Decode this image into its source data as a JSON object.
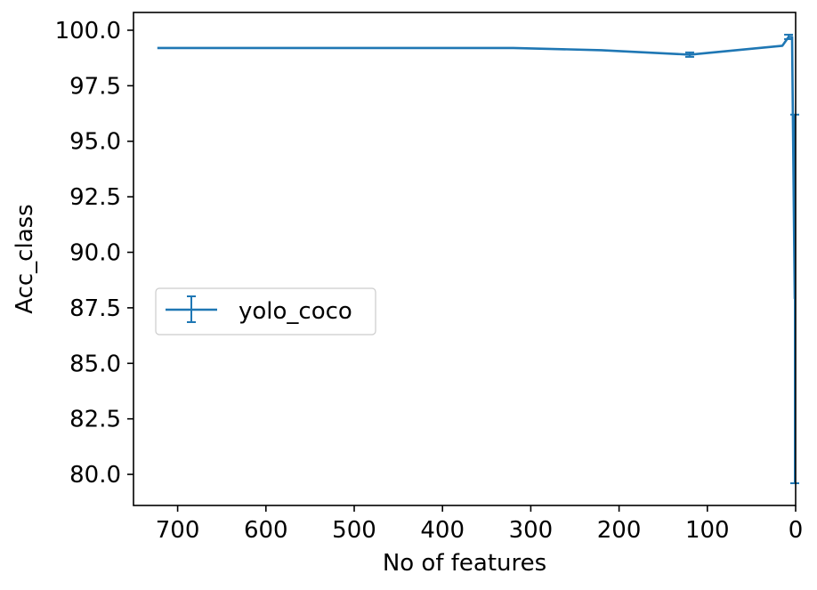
{
  "chart_data": {
    "type": "line",
    "xlabel": "No of features",
    "ylabel": "Acc_class",
    "xlim": [
      750,
      0
    ],
    "ylim": [
      78.6,
      100.8
    ],
    "x_ticks": [
      700,
      600,
      500,
      400,
      300,
      200,
      100,
      0
    ],
    "x_tick_labels": [
      "700",
      "600",
      "500",
      "400",
      "300",
      "200",
      "100",
      "0"
    ],
    "y_ticks": [
      80.0,
      82.5,
      85.0,
      87.5,
      90.0,
      92.5,
      95.0,
      97.5,
      100.0
    ],
    "y_tick_labels": [
      "80.0",
      "82.5",
      "85.0",
      "87.5",
      "90.0",
      "92.5",
      "95.0",
      "97.5",
      "100.0"
    ],
    "grid": false,
    "legend_position": "center-left",
    "series": [
      {
        "name": "yolo_coco",
        "color": "#1f77b4",
        "error_bars": true,
        "points": [
          {
            "x": 723,
            "y": 99.2,
            "err": 0.0
          },
          {
            "x": 600,
            "y": 99.2,
            "err": 0.0
          },
          {
            "x": 450,
            "y": 99.2,
            "err": 0.0
          },
          {
            "x": 320,
            "y": 99.2,
            "err": 0.0
          },
          {
            "x": 220,
            "y": 99.1,
            "err": 0.0
          },
          {
            "x": 120,
            "y": 98.9,
            "err": 0.1
          },
          {
            "x": 15,
            "y": 99.3,
            "err": 0.0
          },
          {
            "x": 8,
            "y": 99.7,
            "err": 0.1
          },
          {
            "x": 4,
            "y": 99.7,
            "err": 0.0
          },
          {
            "x": 1,
            "y": 87.9,
            "err": 8.3
          }
        ]
      }
    ]
  }
}
